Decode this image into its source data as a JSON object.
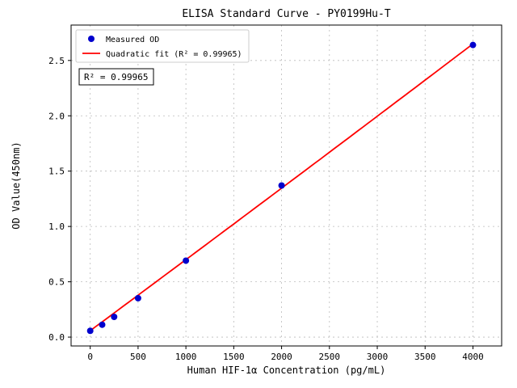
{
  "figure": {
    "background": "#ffffff"
  },
  "chart_data": {
    "type": "scatter",
    "title": "ELISA Standard Curve - PY0199Hu-T",
    "xlabel": "Human HIF-1α Concentration (pg/mL)",
    "ylabel": "OD Value(450nm)",
    "xlim": [
      -200,
      4300
    ],
    "ylim": [
      -0.08,
      2.82
    ],
    "xticks": [
      0,
      500,
      1000,
      1500,
      2000,
      2500,
      3000,
      3500,
      4000
    ],
    "yticks": [
      0.0,
      0.5,
      1.0,
      1.5,
      2.0,
      2.5
    ],
    "grid": true,
    "grid_style": {
      "color": "#b3b3b3",
      "dash": "2,4"
    },
    "legend": {
      "position": "upper-left",
      "border_color": "#cccccc"
    },
    "annotation": "R² = 0.99965",
    "annotation_border": "#000000",
    "series": [
      {
        "name": "Measured OD",
        "kind": "scatter",
        "color": "#0000cd",
        "marker": "circle",
        "x": [
          0,
          125,
          250,
          500,
          1000,
          2000,
          4000
        ],
        "y": [
          0.057,
          0.112,
          0.183,
          0.352,
          0.691,
          1.37,
          2.64
        ]
      },
      {
        "name": "Quadratic fit (R² = 0.99965)",
        "kind": "line",
        "color": "#ff0000",
        "fit_coeffs": [
          0.058,
          0.00064,
          2e-09
        ],
        "x_range": [
          0,
          4000
        ]
      }
    ]
  }
}
